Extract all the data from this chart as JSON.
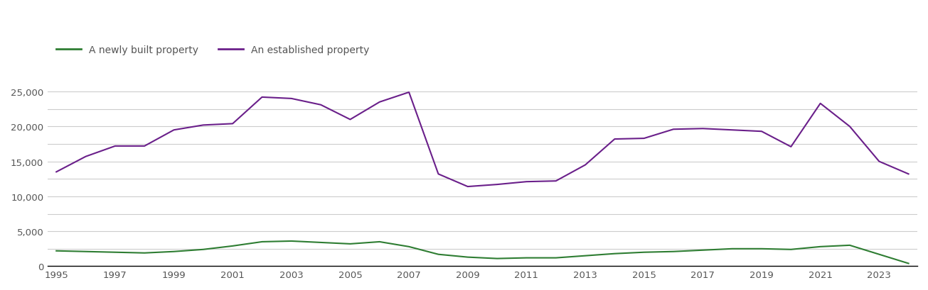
{
  "years": [
    1995,
    1996,
    1997,
    1998,
    1999,
    2000,
    2001,
    2002,
    2003,
    2004,
    2005,
    2006,
    2007,
    2008,
    2009,
    2010,
    2011,
    2012,
    2013,
    2014,
    2015,
    2016,
    2017,
    2018,
    2019,
    2020,
    2021,
    2022,
    2023,
    2024
  ],
  "new_build": [
    2200,
    2100,
    2000,
    1900,
    2100,
    2400,
    2900,
    3500,
    3600,
    3400,
    3200,
    3500,
    2800,
    1700,
    1300,
    1100,
    1200,
    1200,
    1500,
    1800,
    2000,
    2100,
    2300,
    2500,
    2500,
    2400,
    2800,
    3000,
    1700,
    400
  ],
  "established": [
    13500,
    15700,
    17200,
    17200,
    19500,
    20200,
    20400,
    24200,
    24000,
    23100,
    21000,
    23500,
    24900,
    13200,
    11400,
    11700,
    12100,
    12200,
    14500,
    18200,
    18300,
    19600,
    19700,
    19500,
    19300,
    17100,
    23300,
    20000,
    15000,
    13200
  ],
  "new_build_color": "#2e7d32",
  "established_color": "#6a1f8a",
  "new_build_label": "A newly built property",
  "established_label": "An established property",
  "ylim": [
    0,
    27000
  ],
  "yticks": [
    0,
    5000,
    10000,
    15000,
    20000,
    25000
  ],
  "ytick_labels": [
    "0",
    "5,000",
    "10,000",
    "15,000",
    "20,000",
    "25,000"
  ],
  "grid_yticks": [
    0,
    2500,
    5000,
    7500,
    10000,
    12500,
    15000,
    17500,
    20000,
    22500,
    25000
  ],
  "background_color": "#ffffff",
  "grid_color": "#cccccc",
  "line_width": 1.5,
  "legend_fontsize": 10,
  "tick_fontsize": 9.5,
  "text_color": "#555555"
}
